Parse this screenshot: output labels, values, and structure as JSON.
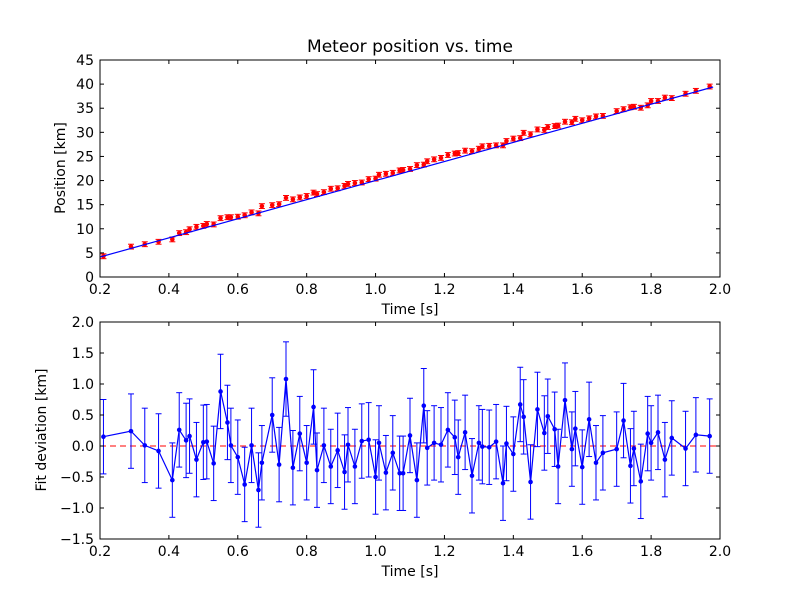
{
  "chart_data": [
    {
      "type": "scatter",
      "title": "Meteor position vs. time",
      "xlabel": "Time [s]",
      "ylabel": "Position [km]",
      "xlim": [
        0.2,
        2.0
      ],
      "ylim": [
        0,
        45
      ],
      "xticks": [
        "0.2",
        "0.4",
        "0.6",
        "0.8",
        "1.0",
        "1.2",
        "1.4",
        "1.6",
        "1.8",
        "2.0"
      ],
      "yticks": [
        "0",
        "5",
        "10",
        "15",
        "20",
        "25",
        "30",
        "35",
        "40",
        "45"
      ],
      "grid": false,
      "colors": {
        "points": "#ff0000",
        "fit_line": "#0000ff"
      },
      "series": [
        {
          "kind": "errorbar-points",
          "x": [
            0.21,
            0.29,
            0.33,
            0.37,
            0.41,
            0.43,
            0.45,
            0.46,
            0.48,
            0.5,
            0.51,
            0.53,
            0.55,
            0.57,
            0.58,
            0.6,
            0.62,
            0.64,
            0.66,
            0.67,
            0.7,
            0.72,
            0.74,
            0.76,
            0.78,
            0.8,
            0.82,
            0.83,
            0.85,
            0.87,
            0.89,
            0.91,
            0.92,
            0.94,
            0.96,
            0.98,
            1.0,
            1.01,
            1.03,
            1.05,
            1.07,
            1.08,
            1.1,
            1.12,
            1.14,
            1.15,
            1.17,
            1.19,
            1.21,
            1.23,
            1.24,
            1.26,
            1.28,
            1.3,
            1.31,
            1.33,
            1.35,
            1.37,
            1.38,
            1.4,
            1.42,
            1.43,
            1.45,
            1.47,
            1.49,
            1.5,
            1.52,
            1.53,
            1.55,
            1.57,
            1.58,
            1.6,
            1.62,
            1.64,
            1.66,
            1.7,
            1.72,
            1.74,
            1.75,
            1.77,
            1.79,
            1.8,
            1.82,
            1.84,
            1.86,
            1.9,
            1.93,
            1.97
          ],
          "y": [
            4.3,
            6.3,
            6.8,
            7.3,
            7.8,
            9.1,
            9.3,
            9.9,
            10.4,
            10.6,
            11.0,
            10.9,
            12.2,
            12.4,
            12.4,
            12.5,
            12.8,
            13.4,
            13.2,
            14.7,
            14.9,
            15.1,
            16.4,
            16.1,
            16.5,
            16.8,
            17.5,
            17.2,
            17.6,
            18.3,
            18.4,
            18.9,
            19.3,
            19.5,
            19.6,
            20.3,
            20.4,
            21.2,
            21.4,
            21.6,
            22.1,
            22.2,
            22.4,
            23.2,
            23.3,
            24.0,
            24.4,
            24.7,
            25.3,
            25.6,
            25.7,
            26.2,
            26.1,
            26.6,
            27.1,
            27.2,
            27.3,
            27.3,
            28.2,
            28.7,
            28.8,
            29.9,
            29.6,
            30.6,
            30.5,
            31.1,
            31.3,
            31.4,
            32.2,
            32.1,
            32.8,
            32.5,
            32.9,
            33.3,
            33.4,
            34.4,
            34.8,
            35.2,
            35.3,
            35.1,
            35.6,
            36.5,
            36.5,
            37.2,
            37.1,
            38.0,
            38.6,
            39.5
          ],
          "yerr": 0.5
        },
        {
          "kind": "fit-line",
          "x": [
            0.2,
            1.98
          ],
          "y": [
            4.15,
            39.4
          ]
        }
      ]
    },
    {
      "type": "line",
      "xlabel": "Time [s]",
      "ylabel": "Fit deviation [km]",
      "xlim": [
        0.2,
        2.0
      ],
      "ylim": [
        -1.5,
        2.0
      ],
      "xticks": [
        "0.2",
        "0.4",
        "0.6",
        "0.8",
        "1.0",
        "1.2",
        "1.4",
        "1.6",
        "1.8",
        "2.0"
      ],
      "yticks": [
        "−1.5",
        "−1.0",
        "−0.5",
        "0.0",
        "0.5",
        "1.0",
        "1.5",
        "2.0"
      ],
      "grid": false,
      "colors": {
        "series": "#0000ff",
        "zero_line": "#ff0000"
      },
      "reference_line": {
        "y": 0,
        "style": "dashed"
      },
      "series": [
        {
          "kind": "errorbar-line",
          "x": [
            0.21,
            0.29,
            0.33,
            0.37,
            0.41,
            0.43,
            0.45,
            0.46,
            0.48,
            0.5,
            0.51,
            0.53,
            0.55,
            0.57,
            0.58,
            0.6,
            0.62,
            0.64,
            0.66,
            0.67,
            0.7,
            0.72,
            0.74,
            0.76,
            0.78,
            0.8,
            0.82,
            0.83,
            0.85,
            0.87,
            0.89,
            0.91,
            0.92,
            0.94,
            0.96,
            0.98,
            1.0,
            1.01,
            1.03,
            1.05,
            1.07,
            1.08,
            1.1,
            1.12,
            1.14,
            1.15,
            1.17,
            1.19,
            1.21,
            1.23,
            1.24,
            1.26,
            1.28,
            1.3,
            1.31,
            1.33,
            1.35,
            1.37,
            1.38,
            1.4,
            1.42,
            1.43,
            1.45,
            1.47,
            1.49,
            1.5,
            1.52,
            1.53,
            1.55,
            1.57,
            1.58,
            1.6,
            1.62,
            1.64,
            1.66,
            1.7,
            1.72,
            1.74,
            1.75,
            1.77,
            1.79,
            1.8,
            1.82,
            1.84,
            1.86,
            1.9,
            1.93,
            1.97
          ],
          "y": [
            0.15,
            0.24,
            0.01,
            -0.08,
            -0.55,
            0.26,
            0.09,
            0.16,
            -0.22,
            0.06,
            0.07,
            -0.28,
            0.88,
            0.38,
            0.01,
            -0.18,
            -0.62,
            0.01,
            -0.71,
            -0.27,
            0.5,
            -0.3,
            1.08,
            -0.35,
            0.2,
            -0.27,
            0.63,
            -0.39,
            0.01,
            -0.33,
            -0.07,
            -0.42,
            0.02,
            -0.33,
            0.08,
            0.1,
            -0.5,
            0.05,
            -0.43,
            -0.11,
            -0.44,
            -0.44,
            0.17,
            -0.55,
            0.65,
            -0.03,
            0.05,
            0.02,
            0.26,
            0.14,
            -0.18,
            0.22,
            -0.48,
            0.05,
            -0.01,
            -0.02,
            0.07,
            -0.6,
            0.04,
            -0.13,
            0.67,
            0.47,
            -0.58,
            0.59,
            0.21,
            0.48,
            0.27,
            -0.33,
            0.74,
            -0.05,
            0.28,
            -0.34,
            0.43,
            -0.27,
            -0.11,
            -0.05,
            0.41,
            -0.32,
            -0.04,
            -0.57,
            0.2,
            0.05,
            0.22,
            -0.22,
            0.13,
            -0.04,
            0.18,
            0.16
          ],
          "yerr": 0.6
        }
      ]
    }
  ]
}
